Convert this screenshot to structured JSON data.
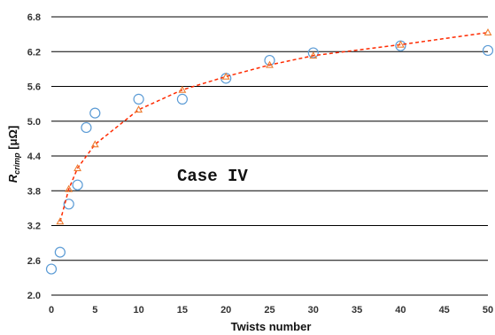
{
  "chart_data": {
    "type": "scatter",
    "xlabel": "Twists number",
    "ylabel": {
      "main": "R",
      "sub": "crimp",
      "unit": " [μΩ]"
    },
    "xlim": [
      0,
      50
    ],
    "ylim": [
      2.0,
      6.8
    ],
    "x_ticks": [
      "0",
      "5",
      "10",
      "15",
      "20",
      "25",
      "30",
      "35",
      "40",
      "45",
      "50"
    ],
    "y_ticks": [
      "2.0",
      "2.6",
      "3.2",
      "3.8",
      "4.4",
      "5.0",
      "5.6",
      "6.2",
      "6.8"
    ],
    "grid": "horizontal",
    "annotation": "Case IV",
    "series": [
      {
        "marker": "circle",
        "color": "#5b9bd5",
        "points": [
          [
            0,
            2.45
          ],
          [
            1,
            2.74
          ],
          [
            2,
            3.57
          ],
          [
            3,
            3.9
          ],
          [
            4,
            4.89
          ],
          [
            5,
            5.14
          ],
          [
            10,
            5.38
          ],
          [
            15,
            5.38
          ],
          [
            20,
            5.74
          ],
          [
            25,
            6.05
          ],
          [
            30,
            6.18
          ],
          [
            40,
            6.3
          ],
          [
            50,
            6.22
          ]
        ]
      },
      {
        "marker": "triangle",
        "color": "#ed7d31",
        "line": "dashed",
        "points": [
          [
            1,
            3.27
          ],
          [
            2,
            3.83
          ],
          [
            3,
            4.19
          ],
          [
            5,
            4.6
          ],
          [
            10,
            5.2
          ],
          [
            15,
            5.54
          ],
          [
            20,
            5.77
          ],
          [
            25,
            5.97
          ],
          [
            30,
            6.13
          ],
          [
            40,
            6.32
          ],
          [
            50,
            6.53
          ]
        ]
      }
    ]
  }
}
